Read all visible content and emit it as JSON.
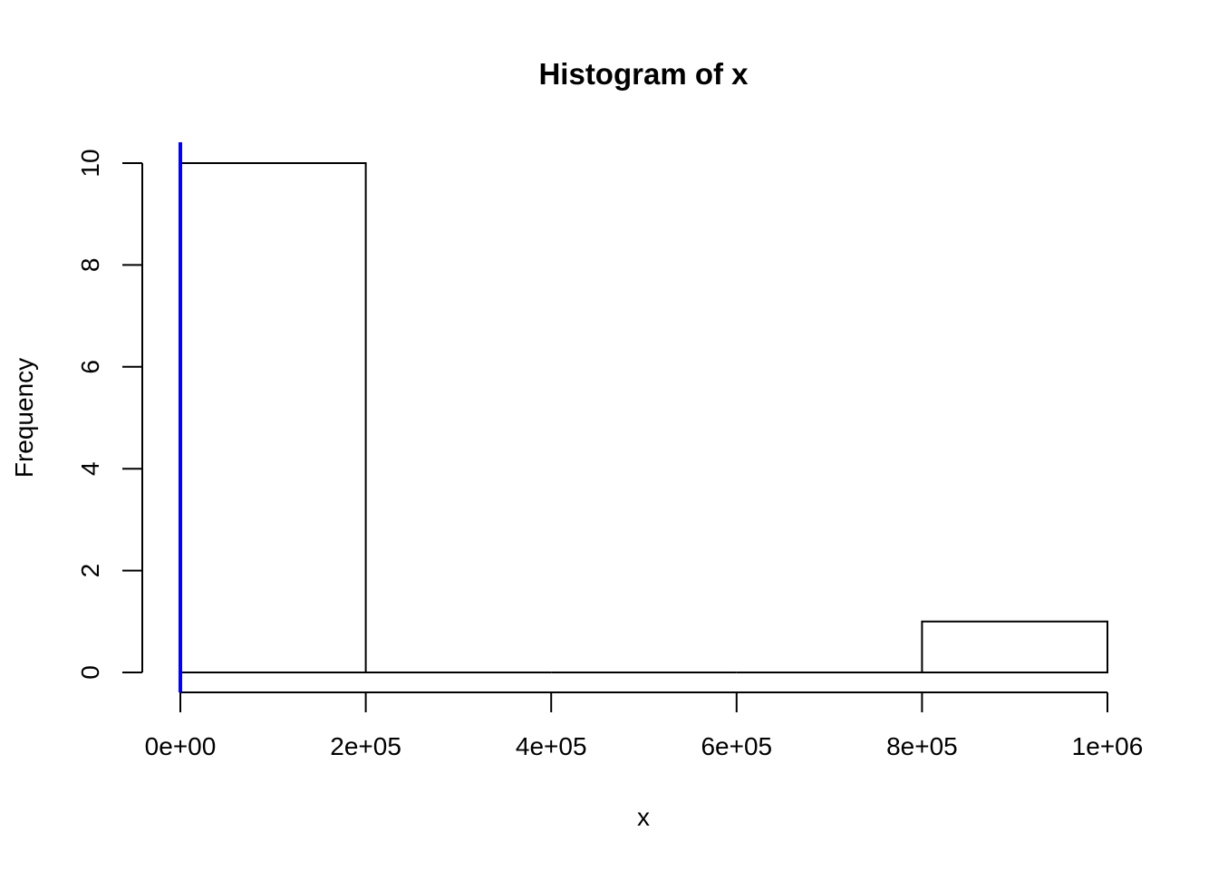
{
  "chart_data": {
    "type": "bar",
    "title": "Histogram of x",
    "xlabel": "x",
    "ylabel": "Frequency",
    "bins": [
      {
        "start": 0,
        "end": 200000,
        "count": 10
      },
      {
        "start": 200000,
        "end": 400000,
        "count": 0
      },
      {
        "start": 400000,
        "end": 600000,
        "count": 0
      },
      {
        "start": 600000,
        "end": 800000,
        "count": 0
      },
      {
        "start": 800000,
        "end": 1000000,
        "count": 1
      }
    ],
    "xlim": [
      0,
      1000000
    ],
    "ylim": [
      0,
      10
    ],
    "x_ticks": [
      {
        "value": 0,
        "label": "0e+00"
      },
      {
        "value": 200000,
        "label": "2e+05"
      },
      {
        "value": 400000,
        "label": "4e+05"
      },
      {
        "value": 600000,
        "label": "6e+05"
      },
      {
        "value": 800000,
        "label": "8e+05"
      },
      {
        "value": 1000000,
        "label": "1e+06"
      }
    ],
    "y_ticks": [
      {
        "value": 0,
        "label": "0"
      },
      {
        "value": 2,
        "label": "2"
      },
      {
        "value": 4,
        "label": "4"
      },
      {
        "value": 6,
        "label": "6"
      },
      {
        "value": 8,
        "label": "8"
      },
      {
        "value": 10,
        "label": "10"
      }
    ],
    "vline": {
      "x": 0,
      "color": "#0000ff"
    },
    "bar_fill": "#ffffff",
    "bar_stroke": "#000000",
    "grid": false
  }
}
